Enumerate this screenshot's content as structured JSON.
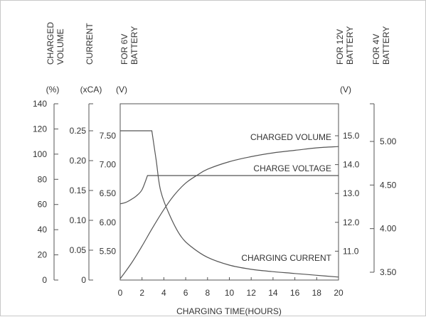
{
  "chart_data": {
    "type": "line",
    "xlabel": "CHARGING TIME(HOURS)",
    "x_ticks": [
      "0",
      "2",
      "4",
      "6",
      "8",
      "10",
      "12",
      "14",
      "16",
      "18",
      "20"
    ],
    "xlim": [
      0,
      20
    ],
    "axes": {
      "charged_volume": {
        "title_lines": [
          "CHARGED",
          "VOLUME"
        ],
        "unit": "(%)",
        "ticks": [
          "140",
          "120",
          "100",
          "80",
          "60",
          "40",
          "20",
          "0"
        ],
        "range": [
          0,
          140
        ]
      },
      "current": {
        "title_lines": [
          "CURRENT"
        ],
        "unit": "(xCA)",
        "ticks": [
          "0.25",
          "0.20",
          "0.15",
          "0.10",
          "0.05",
          "0"
        ],
        "range": [
          0,
          0.25
        ]
      },
      "voltage_6v": {
        "title_lines": [
          "FOR 6V",
          "BATTERY"
        ],
        "unit": "(V)",
        "ticks": [
          "7.50",
          "7.00",
          "6.50",
          "6.00",
          "5.50"
        ]
      },
      "voltage_12v": {
        "title_lines": [
          "FOR 12V",
          "BATTERY"
        ],
        "unit": "(V)",
        "ticks": [
          "15.0",
          "14.0",
          "13.0",
          "12.0",
          "11.0"
        ]
      },
      "voltage_4v": {
        "title_lines": [
          "FOR 4V",
          "BATTERY"
        ],
        "ticks": [
          "5.00",
          "4.50",
          "4.00",
          "3.50"
        ]
      }
    },
    "series": [
      {
        "name": "CHARGED VOLUME",
        "axis": "charged_volume",
        "x": [
          0,
          1,
          2,
          3,
          4,
          5,
          6,
          7,
          8,
          10,
          12,
          14,
          16,
          18,
          20
        ],
        "y": [
          1,
          13,
          27,
          42,
          56,
          68,
          77,
          83,
          88,
          94,
          98,
          101,
          103,
          105,
          106
        ]
      },
      {
        "name": "CHARGE VOLTAGE",
        "axis": "voltage_12v",
        "x": [
          0,
          0.5,
          1,
          1.5,
          2,
          2.5,
          3,
          6,
          10,
          14,
          18,
          20
        ],
        "y": [
          12.64,
          12.69,
          12.79,
          12.92,
          13.13,
          13.62,
          13.62,
          13.62,
          13.62,
          13.62,
          13.62,
          13.62
        ]
      },
      {
        "name": "CHARGING CURRENT",
        "axis": "current",
        "x": [
          0,
          1,
          2,
          2.9,
          3.3,
          3.7,
          4.5,
          5.5,
          6.5,
          8,
          10,
          12,
          14,
          16,
          18,
          20
        ],
        "y": [
          0.25,
          0.25,
          0.25,
          0.25,
          0.2,
          0.15,
          0.11,
          0.075,
          0.056,
          0.038,
          0.025,
          0.018,
          0.014,
          0.011,
          0.008,
          0.005
        ]
      }
    ],
    "grid": false,
    "legend": "none"
  }
}
